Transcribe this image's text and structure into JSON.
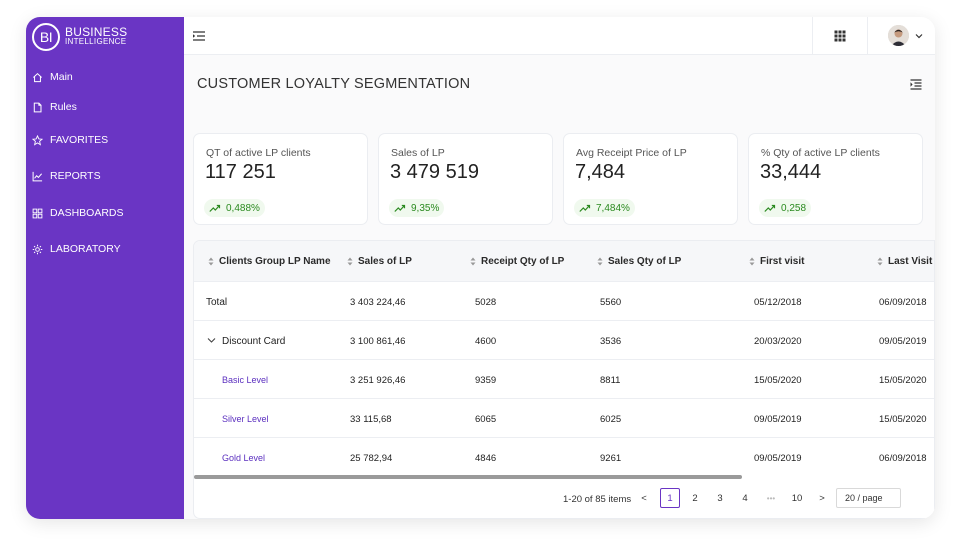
{
  "brand": {
    "logo_initials": "BI",
    "line1": "BUSINESS",
    "line2": "INTELLIGENCE"
  },
  "sidebar": {
    "items": [
      {
        "label": "Main",
        "icon": "home-icon"
      },
      {
        "label": "Rules",
        "icon": "document-icon"
      },
      {
        "label": "FAVORITES",
        "icon": "star-icon"
      },
      {
        "label": "REPORTS",
        "icon": "line-chart-icon"
      },
      {
        "label": "DASHBOARDS",
        "icon": "dashboard-grid-icon"
      },
      {
        "label": "LABORATORY",
        "icon": "gear-icon"
      }
    ]
  },
  "page": {
    "title": "CUSTOMER LOYALTY SEGMENTATION"
  },
  "kpis": [
    {
      "label": "QT of active LP clients",
      "value": "117 251",
      "change": "0,488%"
    },
    {
      "label": "Sales of LP",
      "value": "3 479 519",
      "change": "9,35%"
    },
    {
      "label": "Avg Receipt Price of LP",
      "value": "7,484",
      "change": "7,484%"
    },
    {
      "label": "% Qty of active  LP clients",
      "value": "33,444",
      "change": "0,258"
    }
  ],
  "table": {
    "columns": [
      "Clients Group LP Name",
      "Sales of LP",
      "Receipt Qty of LP",
      "Sales Qty of LP",
      "First visit",
      "Last Visit"
    ],
    "rows": [
      {
        "name": "Total",
        "sales": "3 403 224,46",
        "receipt_qty": "5028",
        "sales_qty": "5560",
        "first": "05/12/2018",
        "last": "06/09/2018"
      },
      {
        "name": "Discount Card",
        "sales": "3 100 861,46",
        "receipt_qty": "4600",
        "sales_qty": "3536",
        "first": "20/03/2020",
        "last": "09/05/2019"
      },
      {
        "name": "Basic Level",
        "sales": "3 251 926,46",
        "receipt_qty": "9359",
        "sales_qty": "8811",
        "first": "15/05/2020",
        "last": "15/05/2020"
      },
      {
        "name": "Silver Level",
        "sales": "33 115,68",
        "receipt_qty": "6065",
        "sales_qty": "6025",
        "first": "09/05/2019",
        "last": "15/05/2020"
      },
      {
        "name": "Gold Level",
        "sales": "25 782,94",
        "receipt_qty": "4846",
        "sales_qty": "9261",
        "first": "09/05/2019",
        "last": "06/09/2018"
      }
    ]
  },
  "pagination": {
    "info": "1-20 of 85 items",
    "prev": "<",
    "next": ">",
    "pages": [
      "1",
      "2",
      "3",
      "4",
      "10"
    ],
    "ellipsis": "•••",
    "current": "1",
    "page_size": "20 / page"
  },
  "colors": {
    "accent": "#6a35c4",
    "positive": "#2a8a1f",
    "positive_bg": "#f0f9ee"
  }
}
